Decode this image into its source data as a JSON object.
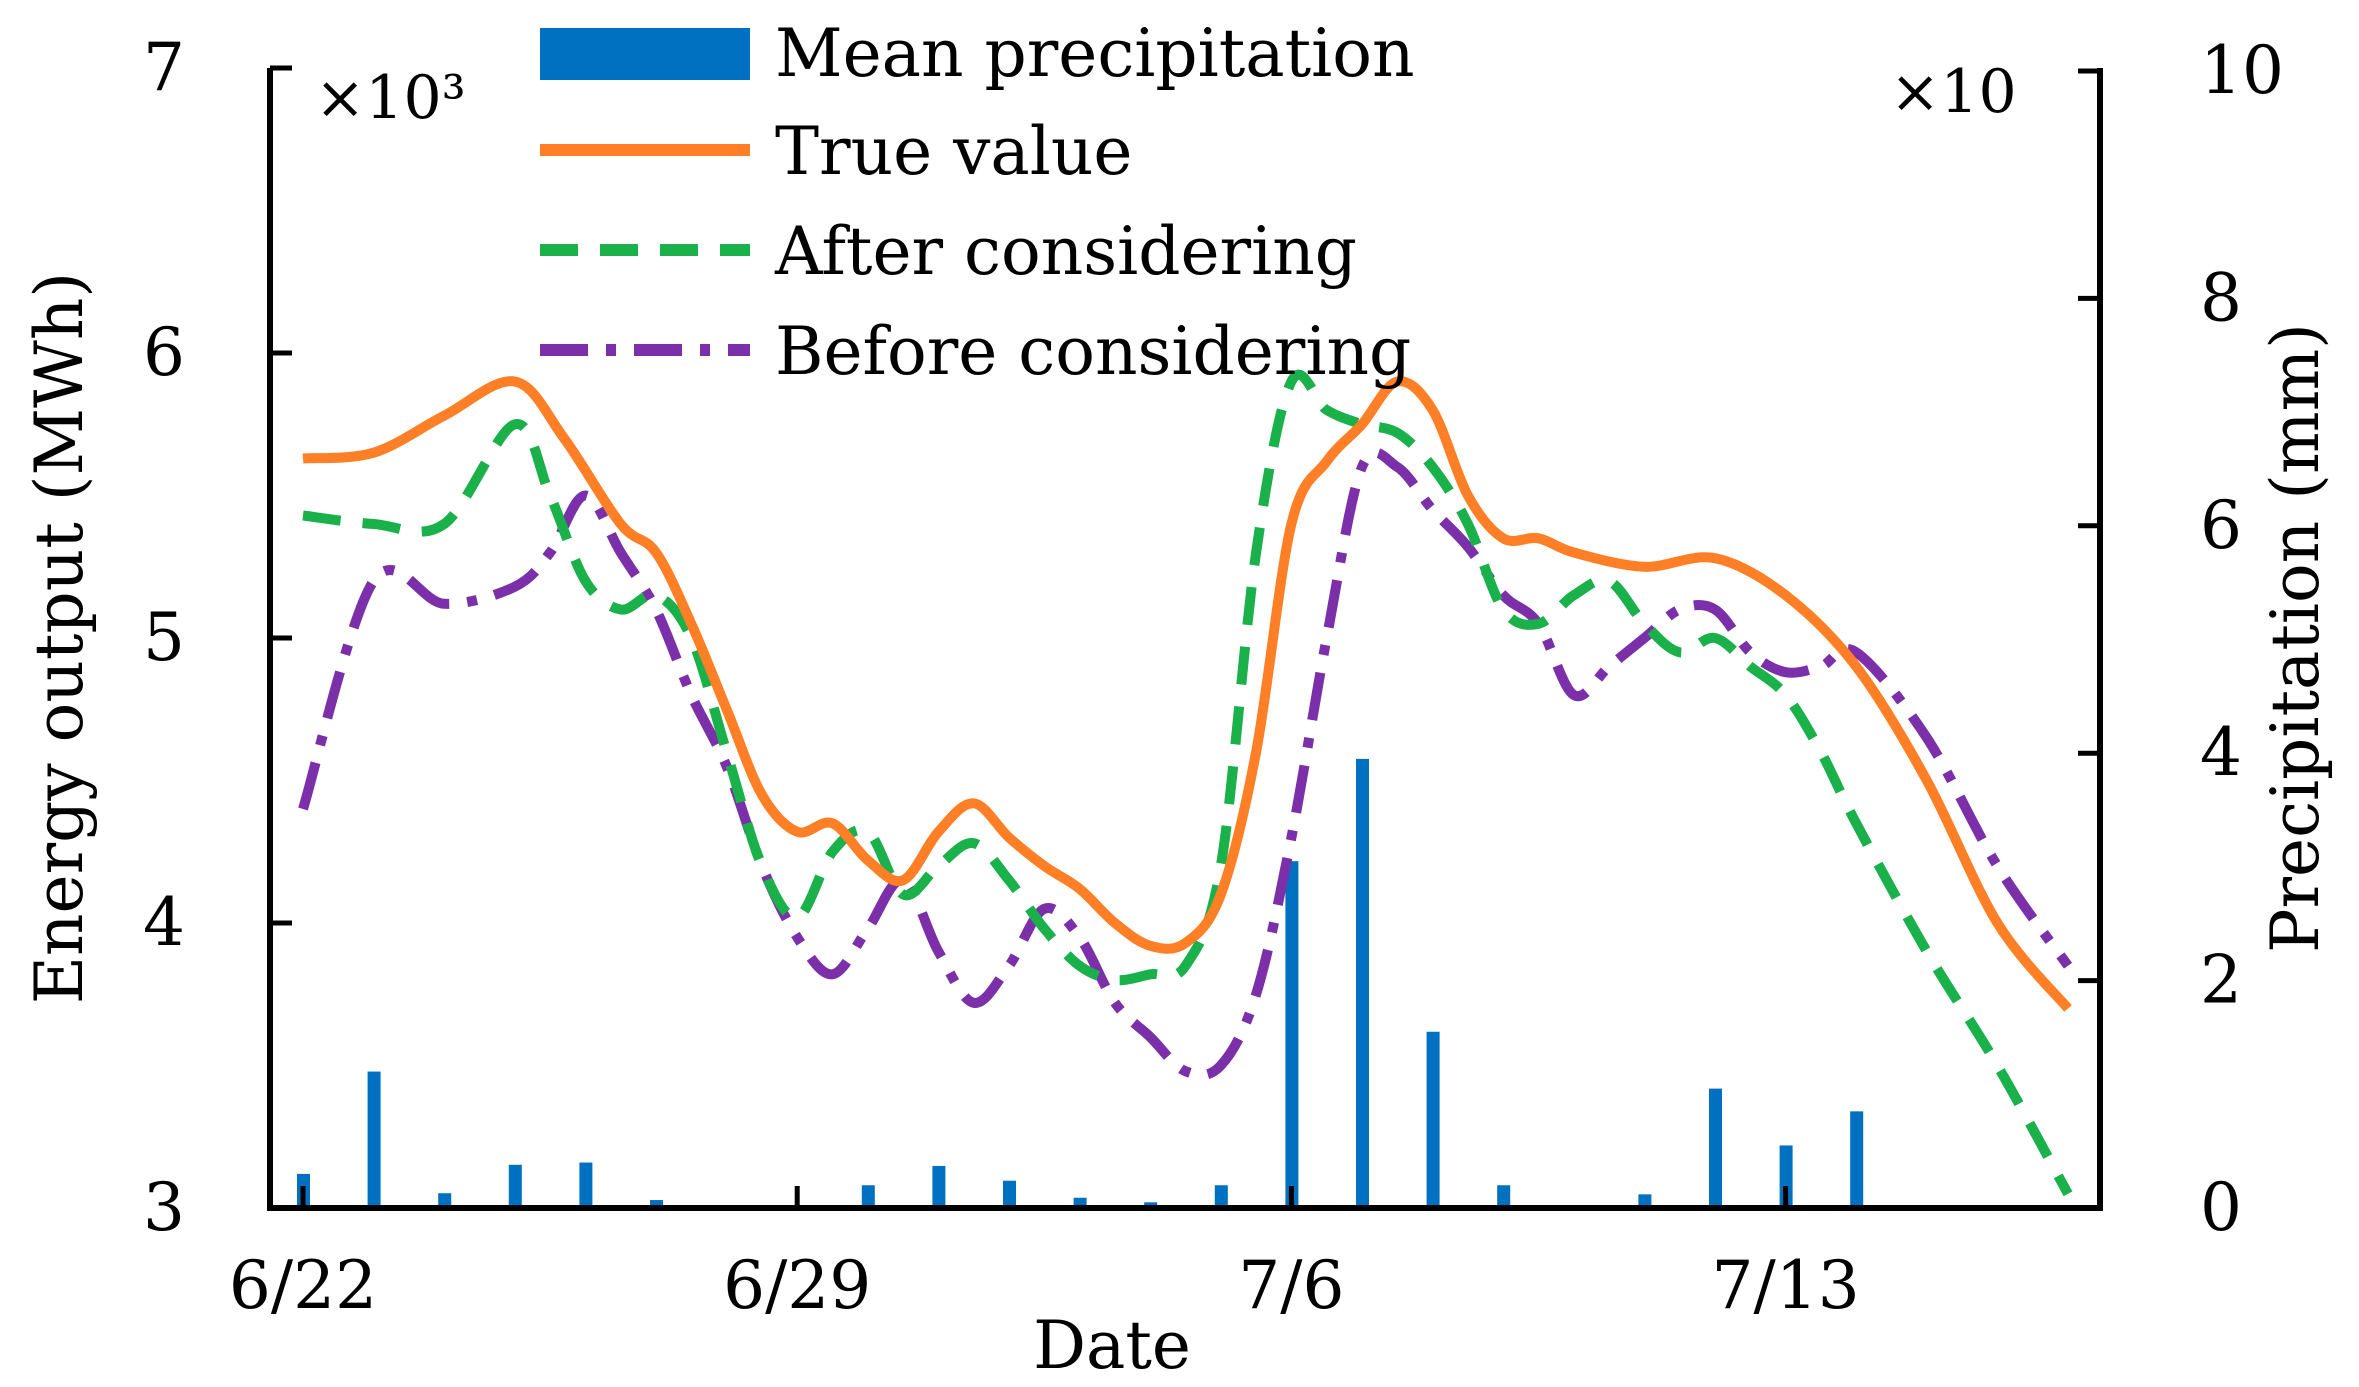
{
  "chart_data": {
    "type": "bar+line",
    "title": "",
    "xlabel": "Date",
    "ylabel_left": "Energy output (MWh)",
    "ylabel_right": "Precipitation (mm)",
    "left_multiplier": "×10³",
    "right_multiplier": "×10",
    "ylim_left": [
      3,
      7
    ],
    "ylim_right": [
      0,
      10
    ],
    "left_ticks": [
      3,
      4,
      5,
      6,
      7
    ],
    "right_ticks": [
      0,
      2,
      4,
      6,
      8,
      10
    ],
    "x_range": [
      0,
      25
    ],
    "x_ticks": [
      {
        "x": 0,
        "label": "6/22"
      },
      {
        "x": 7,
        "label": "6/29"
      },
      {
        "x": 14,
        "label": "7/6"
      },
      {
        "x": 21,
        "label": "7/13"
      }
    ],
    "legend": [
      "Mean precipitation",
      "True value",
      "After considering",
      "Before considering"
    ],
    "colors": {
      "precipitation": "#0070c0",
      "true": "#ff7f27",
      "after": "#1ab04a",
      "before": "#7b2fa8"
    },
    "precipitation": {
      "name": "Mean precipitation",
      "x": [
        0,
        1,
        2,
        3,
        4,
        5,
        7,
        8,
        9,
        10,
        11,
        12,
        13,
        14,
        15,
        16,
        17,
        19,
        20,
        21,
        22,
        23
      ],
      "values": [
        0.3,
        1.2,
        0.13,
        0.38,
        0.4,
        0.07,
        0.02,
        0.2,
        0.37,
        0.24,
        0.09,
        0.05,
        0.2,
        3.05,
        3.95,
        1.55,
        0.2,
        0.12,
        1.05,
        0.55,
        0.85,
        0.0
      ]
    },
    "series": [
      {
        "name": "True value",
        "x": [
          0,
          1,
          2,
          3,
          3.7,
          4.5,
          5,
          5.5,
          6,
          6.5,
          7,
          7.5,
          8,
          8.5,
          9,
          9.5,
          10,
          10.5,
          11,
          11.5,
          12,
          12.5,
          13,
          13.5,
          14,
          14.5,
          15,
          15.5,
          16,
          16.5,
          17,
          17.5,
          18,
          19,
          20,
          21,
          22,
          23,
          24,
          25
        ],
        "values": [
          5.63,
          5.65,
          5.78,
          5.9,
          5.7,
          5.4,
          5.3,
          5.05,
          4.75,
          4.45,
          4.32,
          4.35,
          4.22,
          4.15,
          4.32,
          4.42,
          4.3,
          4.2,
          4.12,
          4.0,
          3.92,
          3.93,
          4.1,
          4.6,
          5.4,
          5.62,
          5.75,
          5.9,
          5.8,
          5.5,
          5.35,
          5.35,
          5.3,
          5.25,
          5.28,
          5.15,
          4.9,
          4.5,
          4.0,
          3.7
        ]
      },
      {
        "name": "After considering",
        "x": [
          0,
          1,
          2,
          3,
          3.5,
          4,
          4.5,
          5,
          5.5,
          6,
          6.5,
          7,
          7.5,
          8,
          8.5,
          9,
          9.5,
          10,
          10.5,
          11,
          11.5,
          12,
          12.5,
          13,
          13.5,
          14,
          14.5,
          15,
          15.5,
          16,
          16.5,
          17,
          17.5,
          18,
          18.5,
          19,
          19.5,
          20,
          20.5,
          21,
          21.5,
          22,
          23,
          24,
          25
        ],
        "values": [
          5.43,
          5.4,
          5.4,
          5.75,
          5.5,
          5.2,
          5.1,
          5.15,
          5.0,
          4.6,
          4.2,
          4.02,
          4.25,
          4.32,
          4.1,
          4.2,
          4.28,
          4.15,
          3.98,
          3.85,
          3.8,
          3.82,
          3.85,
          4.2,
          5.3,
          5.9,
          5.8,
          5.75,
          5.72,
          5.6,
          5.4,
          5.1,
          5.05,
          5.15,
          5.2,
          5.05,
          4.95,
          5.0,
          4.9,
          4.8,
          4.6,
          4.35,
          3.9,
          3.5,
          3.05
        ]
      },
      {
        "name": "Before considering",
        "x": [
          0,
          1,
          2,
          3,
          3.5,
          4,
          4.5,
          5,
          5.5,
          6,
          6.5,
          7,
          7.5,
          8,
          8.5,
          9,
          9.5,
          10,
          10.5,
          11,
          11.5,
          12,
          12.5,
          13,
          13.5,
          14,
          14.5,
          15,
          15.5,
          16,
          16.5,
          17,
          17.5,
          18,
          18.5,
          19,
          19.5,
          20,
          20.5,
          21,
          21.5,
          22,
          23,
          24,
          25
        ],
        "values": [
          4.4,
          5.2,
          5.12,
          5.18,
          5.3,
          5.5,
          5.3,
          5.1,
          4.8,
          4.55,
          4.2,
          3.95,
          3.82,
          3.98,
          4.15,
          3.9,
          3.72,
          3.85,
          4.05,
          3.95,
          3.72,
          3.6,
          3.48,
          3.5,
          3.75,
          4.3,
          5.0,
          5.6,
          5.6,
          5.45,
          5.32,
          5.15,
          5.05,
          4.8,
          4.9,
          5.0,
          5.1,
          5.1,
          4.95,
          4.88,
          4.9,
          4.95,
          4.65,
          4.2,
          3.85
        ]
      }
    ]
  }
}
